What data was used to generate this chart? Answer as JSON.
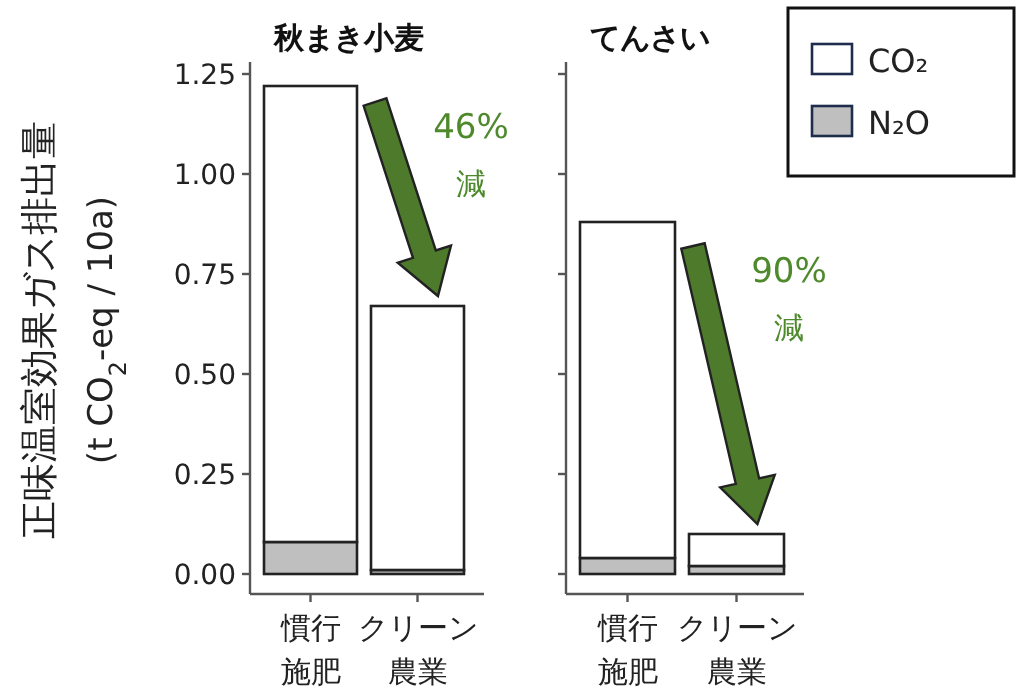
{
  "chart_data": [
    {
      "type": "bar",
      "title": "秋まき小麦",
      "ylabel": "正味温室効果ガス排出量\n(t CO$_{2}$-eq / 10a)",
      "categories": [
        "慣行施肥",
        "クリーン農業"
      ],
      "stacked": true,
      "ylim": [
        -0.05,
        1.28
      ],
      "yticks": [
        {
          "value": 0,
          "label": "0.00"
        },
        {
          "value": 0.25,
          "label": "0.25"
        },
        {
          "value": 0.5,
          "label": "0.50"
        },
        {
          "value": 0.75,
          "label": "0.75"
        },
        {
          "value": 1,
          "label": "1.00"
        },
        {
          "value": 1.25,
          "label": "1.25"
        }
      ],
      "series": [
        {
          "color": "#bfbfbf",
          "values": [
            0.08,
            0.01
          ]
        },
        {
          "color": "#ffffff",
          "values": [
            1.14,
            0.66
          ]
        }
      ],
      "annotations": [
        "46%",
        "減"
      ]
    },
    {
      "type": "bar",
      "title": "てんさい",
      "categories": [
        "慣行施肥",
        "クリーン農業"
      ],
      "stacked": true,
      "ylim": [
        -0.05,
        1.28
      ],
      "yticks": [
        0,
        0.25,
        0.5,
        0.75,
        1,
        1.25
      ],
      "tick_labels": "x",
      "series": [
        {
          "name": "N₂O",
          "color": "#bfbfbf",
          "values": [
            0.04,
            0.02
          ]
        },
        {
          "name": "CO₂",
          "color": "#ffffff",
          "values": [
            0.84,
            0.08
          ]
        }
      ],
      "annotations": [
        "90%",
        "減"
      ],
      "legend": "top right"
    }
  ]
}
